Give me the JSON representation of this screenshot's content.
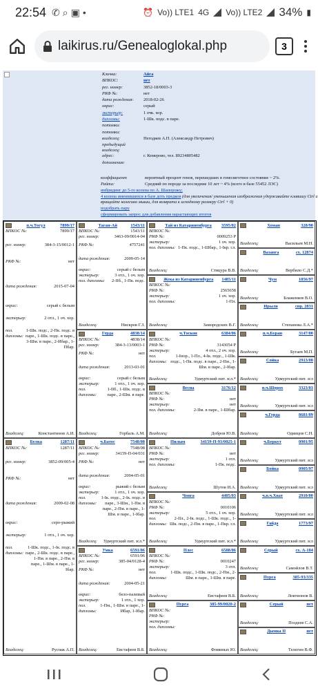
{
  "status": {
    "time": "22:54",
    "net1": "Vo)) LTE1",
    "net2": "4G",
    "net3": "Vo)) LTE2",
    "battery": "34%"
  },
  "browser": {
    "url": "laikirus.ru/Genealoglokal.php",
    "tab_count": "3"
  },
  "dog": {
    "rows": [
      {
        "k": "Кличка:",
        "v": "Айга",
        "cls": "blue"
      },
      {
        "k": "ВПКОС:",
        "v": "нет",
        "cls": "blue"
      },
      {
        "k": "рег. номер:",
        "v": "3852-18/0003-3",
        "cls": ""
      },
      {
        "k": "РКФ №:",
        "v": "нет",
        "cls": ""
      },
      {
        "k": "дата рождения:",
        "v": "2018-02-26",
        "cls": ""
      },
      {
        "k": "окрас:",
        "v": "серый",
        "cls": ""
      },
      {
        "k": "экстерьер:",
        "v": "1 очк. хор.",
        "cls": "link-k"
      },
      {
        "k": "дипломы:",
        "v": "1-Шк. подс. в паре.",
        "cls": "link-k"
      },
      {
        "k": "потомки:",
        "v": "",
        "cls": ""
      },
      {
        "k": "потомки:",
        "v": "",
        "cls": ""
      },
      {
        "k": "владелец:",
        "v": "Негодяев А.П. (Александр Петрович)",
        "cls": ""
      },
      {
        "k": "предыдущий владелец:",
        "v": "",
        "cls": ""
      },
      {
        "k": "адрес:",
        "v": "г. Кемерово, тел. 89234805482",
        "cls": ""
      },
      {
        "k": "дополнения:",
        "v": "",
        "cls": ""
      }
    ],
    "coef_label": "коэффициент",
    "coef_value": "вероятный процент генов, перешедших в гомозиготное состояние ~ 2%.",
    "raita_label": "Райта:",
    "raita_value": "Средний по породе за последние 10 лет ~ 4% (всего в базе 55452 ЛЭС)",
    "link_inbreeding": "инбридинг до 5-го колена по А. Шапорожу;",
    "link_5gen": "4 колена именившихся в базе доть предков",
    "zoom_note": "(для увеличения/ уменьшения изображения удерживайте клавишу Ctrl и вращайте колесико мыши, для возврата к исходному размеру Ctrl + 0)",
    "link_pair": "подобрать пару",
    "link_request": "сформировать запрос для добавления нарастающих итогов"
  },
  "labels": {
    "vpkos": "ВПКОС №:",
    "reg": "рег. номер:",
    "rkf": "РКФ №:",
    "dob": "дата рождения:",
    "color": "окрас:",
    "ext": "экстерьер:",
    "dipl": "пол. дипломы:",
    "owner": "Владелец:"
  },
  "gen1": [
    {
      "name": "п.ч.Тогул",
      "vpkos": "7899/17",
      "reg": "384-3-15/0012-1",
      "rkf": "нет",
      "dob": "2015-07-04",
      "color": "серый с белым",
      "ext": "2 отл., 1 оч. хор.",
      "dipl": "1-Шк. подс., 2-Пк. подс. в паре., 1-Шк. подс. в паре., 3-Шм. в паре., 2-Ибар., 1-Пбар.",
      "owner": "Константинов А.И."
    },
    {
      "name": "Белка",
      "vpkos": "1287/11",
      "reg": "3852-09/005-4",
      "rkf": "нет",
      "dob": "2009-02-08",
      "color": "серо-рыжий",
      "ext": "1 отл., 1 оч. хор.",
      "dipl": "1-Шк. подс., 1-Ік. подс. в паре., 2-Шк. подс. в паре., 1-Пм. в паре., 2-Пм. в паре., 1-Шм. в паре., 1-Ібар.",
      "owner": "Руснак А.П."
    }
  ],
  "gen2": [
    {
      "name": "Таган-Ай",
      "vpkos": "1543/11",
      "reg": "3463-09/0014-04",
      "rkf": "4757241",
      "dob": "2009-05-14",
      "color": "серый с белым",
      "ext": "3 отл., 1 оч. хор.",
      "dipl": "2-ІІб., 1-Пк. подс.",
      "owner": "Нискров Г.З."
    },
    {
      "name": "Герда",
      "vpkos": "4838/14",
      "reg": "384-3-13/0003-1",
      "rkf": "нет",
      "dob": "2013-03-01",
      "color": "серый с белым",
      "ext": "1 отл., 1 оч. хор.",
      "dipl": "1-ІІб., 1-Шк. подс. в паре., 2-Шм. в паре.",
      "owner": "Горбаль А.М."
    },
    {
      "name": "ч.Батос",
      "vpkos": "7548/08",
      "reg": "34159-П-04/031",
      "rkf": "нет",
      "dob": "2004-05-01",
      "color": "рыжий с белым",
      "ext": "1 отл., 1 оч. хор.",
      "dipl": "1-Ік. подс., 2-Ік. подс. в паре., 3-Шм., 1-Пм. в паре., 2-Пм. в паре., 1-Шм. в паре., 1-Ібар.",
      "owner": "Удмуртский пит. зсл.*"
    },
    {
      "name": "Умка",
      "vpkos": "6591/06",
      "reg": "385-04/0128-4",
      "rkf": "нет",
      "dob": "2004-05-21",
      "color": "бело-палевый",
      "ext": "1 отл., 1 хор.",
      "dipl": "1-Пм., 1-Шм. в паре., 1-Ибар, 1-Ібар.",
      "owner": "Евстафеев В.Б."
    }
  ],
  "gen3": [
    {
      "name": "Тай из Катариненбурга",
      "num": "3595/02",
      "vpkos": "",
      "rkf": "0009253 Р",
      "ext": "1 оч. хор.",
      "dipl": "1-Пк. подс., 1-Шбар., 1-Ікр. сл.",
      "owner": "Стицура В.В."
    },
    {
      "name": "Жека из Катариненбурга",
      "num": "1485/11",
      "vpkos": "",
      "rkf": "2565658",
      "ext": "1 оч. хор.",
      "dipl": "1-Пл.",
      "owner": "Замородских В.Г."
    },
    {
      "name": "ч.Тоскон",
      "num": "6384/06",
      "vpkos": "",
      "rkf": "3143054 Р",
      "ext": "4 отл., 2 оч. хор.",
      "dipl": "1-Інор., 1-Пл., 4-Ік. подс., 1-Шк. подс., 1-Пк. подс. в паре., 2-ІІм., 1-Шм. в паре., 2-Ібар.",
      "owner": "Удмуртский пит. зсл.*"
    },
    {
      "name": "Весна",
      "num": "3176/12",
      "vpkos": "",
      "rkf": "нет",
      "ext": "нет",
      "dipl": "2-ІІм. в паре., 1-Шбар.",
      "owner": "Добров Ю.В."
    },
    {
      "name": "Пилым",
      "num": "34159-П-93/0025-1",
      "vpkos": "",
      "rkf": "нет",
      "ext": "1 отл.",
      "dipl": "1-Пк. подс.",
      "owner": "Шутов И.А."
    },
    {
      "name": "Чонга",
      "num": "4405/03",
      "vpkos": "",
      "rkf": "0010106",
      "ext": "5 отл., 1 оч. хор.",
      "dipl": "2-ІІл., 2-Ік. подс., 1-Шк. подс., 1-Шк. подс., 2-Пм. в паре., 1-Пкр. сл.",
      "owner": "Удмуртский пит. зсл.*"
    },
    {
      "name": "Плес",
      "num": "6588/06",
      "vpkos": "",
      "rkf": "0010247",
      "ext": "3 отл.",
      "dipl": "1-Шк. подс., 1-Шк. подс., 2-Пм., 2-Шм. в паре., 1-Шм. в паре.",
      "owner": "Евстафеев В.Б."
    },
    {
      "name": "Пурга",
      "num": "385-99/0020-2",
      "vpkos": "",
      "rkf": "",
      "ext": "",
      "dipl": "",
      "owner": "Фоминых Ю."
    }
  ],
  "gen4": [
    {
      "name": "Хоман",
      "num": "328/90",
      "owner": "Васильев М.Н."
    },
    {
      "name": "Вазанга",
      "num": "сх. 12874",
      "owner": "Вербило С.Д.*"
    },
    {
      "name": "Чум",
      "num": "1856/97",
      "owner": "Блаженков В.О."
    },
    {
      "name": "Ирыля",
      "num": "спр. 2831",
      "owner": "Степанова Л.А.*"
    },
    {
      "name": "п.ч.Буран",
      "num": "3147/00",
      "owner": "Бугаев М.П."
    },
    {
      "name": "Сойка",
      "num": "2913/00",
      "owner": "Удмуртский пит. зсл"
    },
    {
      "name": "п.ч.Шорох",
      "num": "3323/03",
      "owner": "Удмуртский пит. зсл"
    },
    {
      "name": "ч.Герда",
      "num": "8681/09",
      "owner": "Одинцов С.Н."
    },
    {
      "name": "ч.Беркут",
      "num": "0901/95",
      "owner": "Удмуртский пит. зсл"
    },
    {
      "name": "Бойка",
      "num": "0905/97",
      "owner": "Удмуртский пит. зсл"
    },
    {
      "name": "ч.п.ч.Хват",
      "num": "2910/00",
      "owner": "Удмуртский пит. зсл"
    },
    {
      "name": "Гайда",
      "num": "1773/97",
      "owner": "Удмуртский пит. зсл"
    },
    {
      "name": "Серый",
      "num": "сх. А-104",
      "owner": "Самойлов В.Т."
    },
    {
      "name": "Пурга",
      "num": "385-93/335",
      "owner": "Локтионов В."
    },
    {
      "name": "Серый",
      "num": "нет",
      "owner": "Поздеев С.А."
    },
    {
      "name": "Дымка II",
      "num": "нет",
      "owner": "Телегин В.Ф."
    }
  ]
}
